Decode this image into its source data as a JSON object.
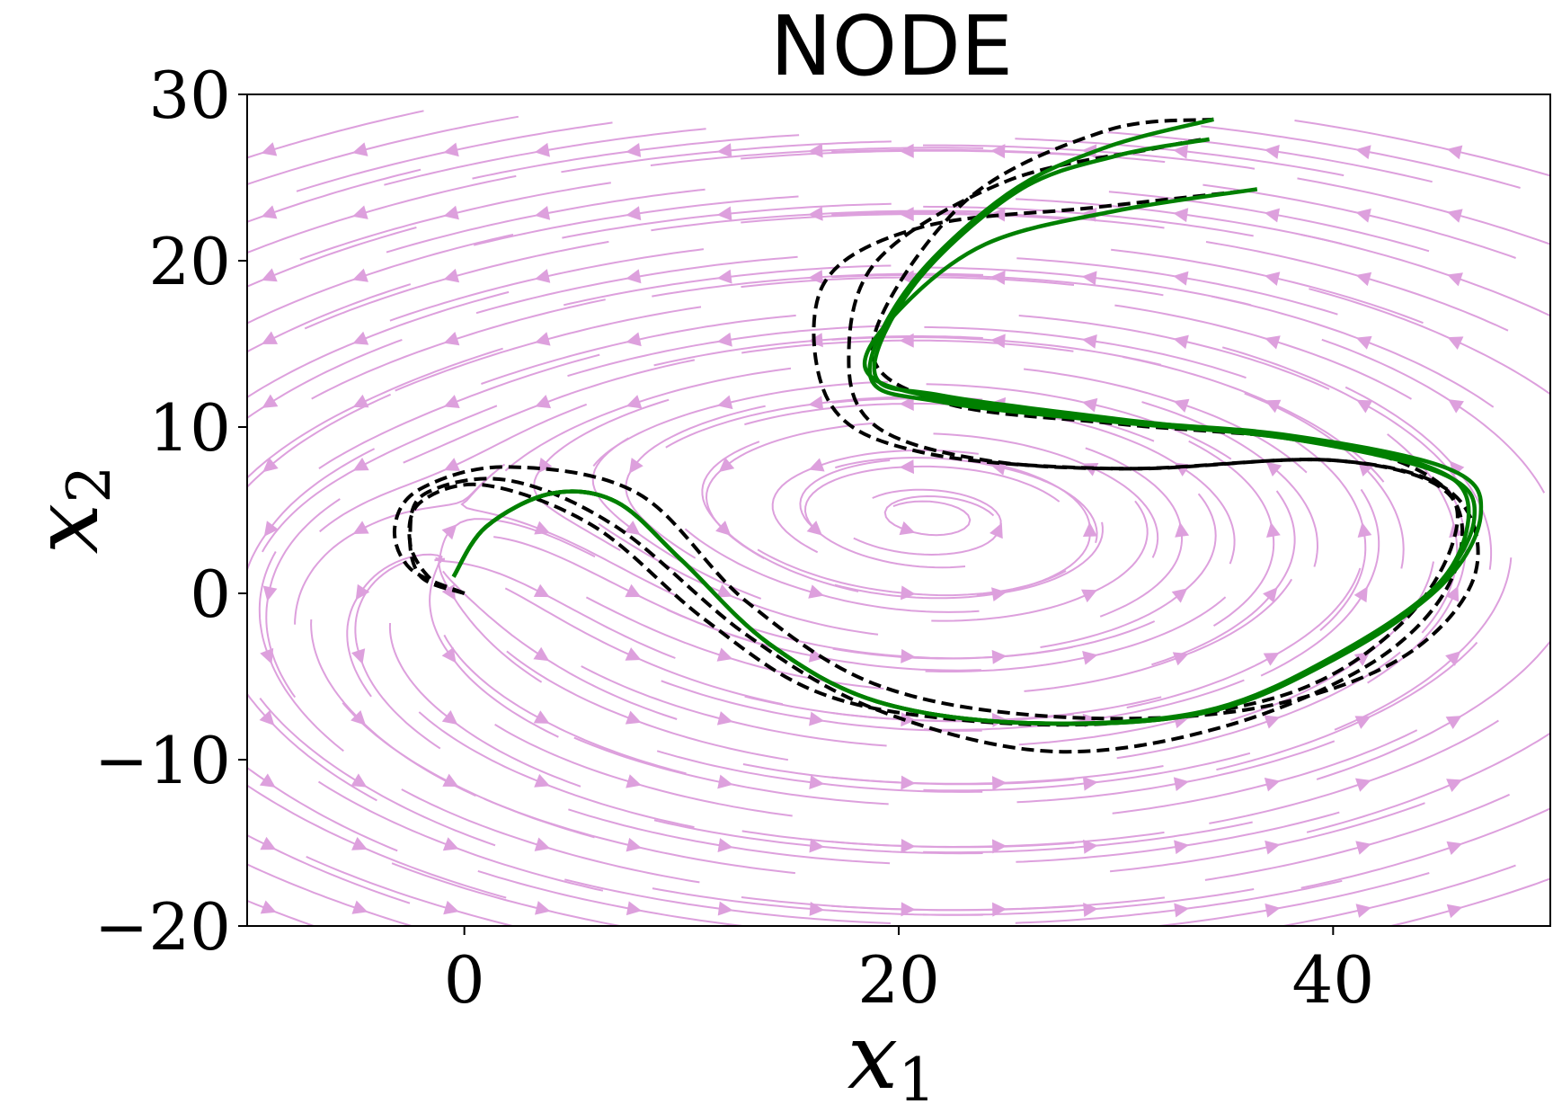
{
  "chart_data": {
    "type": "line",
    "title": "NODE",
    "xlabel": "x",
    "xlabel_sub": "1",
    "ylabel": "x",
    "ylabel_sub": "2",
    "xlim": [
      -10,
      50
    ],
    "ylim": [
      -20,
      30
    ],
    "xticks": [
      0,
      20,
      40
    ],
    "xtick_labels": [
      "0",
      "20",
      "40"
    ],
    "yticks": [
      -20,
      -10,
      0,
      10,
      20,
      30
    ],
    "ytick_labels": [
      "−20",
      "−10",
      "0",
      "10",
      "20",
      "30"
    ],
    "grid": false,
    "legend": "none",
    "streamplot": {
      "description_color": "#dda0dd",
      "equilibria": [
        {
          "kind": "center",
          "x": 22,
          "y": 2.5
        },
        {
          "kind": "source",
          "x": -1,
          "y": 1
        }
      ]
    },
    "series": [
      {
        "style": "dashed",
        "color": "#000000",
        "points": [
          [
            0,
            0
          ],
          [
            -1.5,
            0.8
          ],
          [
            -2.5,
            3
          ],
          [
            -2,
            5.5
          ],
          [
            1,
            6.5
          ],
          [
            6,
            4
          ],
          [
            11,
            -1.5
          ],
          [
            16,
            -5.8
          ],
          [
            22,
            -7.5
          ],
          [
            30,
            -7.8
          ],
          [
            38,
            -6
          ],
          [
            43,
            -2
          ],
          [
            45.5,
            3
          ],
          [
            45,
            6.5
          ],
          [
            40,
            9
          ],
          [
            30,
            10.2
          ],
          [
            22,
            11.5
          ],
          [
            18.8,
            15
          ],
          [
            23,
            23.5
          ],
          [
            29.5,
            27.8
          ],
          [
            34.5,
            28.5
          ]
        ]
      },
      {
        "style": "dashed",
        "color": "#000000",
        "points": [
          [
            0,
            0
          ],
          [
            -2,
            1
          ],
          [
            -2.5,
            3.5
          ],
          [
            -1.8,
            6
          ],
          [
            2,
            6.8
          ],
          [
            7,
            4
          ],
          [
            13,
            -2.5
          ],
          [
            19,
            -7
          ],
          [
            27,
            -9.5
          ],
          [
            35,
            -8
          ],
          [
            42,
            -4
          ],
          [
            45.5,
            1
          ],
          [
            45.3,
            6
          ],
          [
            40,
            8
          ],
          [
            31,
            7.5
          ],
          [
            24,
            8
          ],
          [
            19,
            10
          ],
          [
            17.7,
            14
          ],
          [
            19,
            20
          ],
          [
            25,
            24.8
          ],
          [
            32,
            26.8
          ],
          [
            34,
            27.3
          ]
        ]
      },
      {
        "style": "dashed",
        "color": "#000000",
        "points": [
          [
            0,
            0
          ],
          [
            -2.5,
            1.5
          ],
          [
            -3.2,
            4
          ],
          [
            -2,
            6.3
          ],
          [
            2,
            7.6
          ],
          [
            8,
            6
          ],
          [
            13,
            -0.5
          ],
          [
            19,
            -5.5
          ],
          [
            27,
            -7.4
          ],
          [
            36,
            -7
          ],
          [
            43,
            -4
          ],
          [
            46.5,
            1
          ],
          [
            45.5,
            6
          ],
          [
            40,
            8
          ],
          [
            30,
            7.5
          ],
          [
            21,
            8.5
          ],
          [
            16.8,
            11.5
          ],
          [
            16.5,
            18.5
          ],
          [
            21,
            22
          ],
          [
            29,
            23.2
          ],
          [
            36,
            24.2
          ]
        ]
      },
      {
        "style": "solid",
        "color": "#008000",
        "points": [
          [
            -0.5,
            1
          ],
          [
            1,
            4
          ],
          [
            4,
            6
          ],
          [
            7,
            5.5
          ],
          [
            10,
            2
          ],
          [
            14,
            -3
          ],
          [
            19,
            -6.5
          ],
          [
            26,
            -7.8
          ],
          [
            34,
            -7.2
          ],
          [
            40,
            -4
          ],
          [
            44.5,
            0
          ],
          [
            46.5,
            4.5
          ],
          [
            45,
            7.2
          ],
          [
            38,
            9.3
          ],
          [
            30,
            10.3
          ],
          [
            22,
            11.5
          ],
          [
            18.7,
            13
          ],
          [
            20.5,
            18.5
          ],
          [
            25,
            24
          ],
          [
            29.5,
            26.8
          ],
          [
            34.5,
            28.5
          ]
        ]
      },
      {
        "style": "solid",
        "color": "#008000",
        "points": [
          [
            -0.5,
            1
          ],
          [
            1,
            4
          ],
          [
            4,
            6
          ],
          [
            7,
            5.5
          ],
          [
            10,
            2
          ],
          [
            14,
            -3
          ],
          [
            19,
            -6.5
          ],
          [
            26,
            -7.8
          ],
          [
            34,
            -7.2
          ],
          [
            40,
            -4
          ],
          [
            45,
            0.5
          ],
          [
            46.8,
            4.8
          ],
          [
            45.3,
            7.5
          ],
          [
            38,
            9.5
          ],
          [
            30,
            10.4
          ],
          [
            22,
            11.7
          ],
          [
            18.5,
            13.4
          ],
          [
            20,
            17
          ],
          [
            24,
            21
          ],
          [
            30,
            23
          ],
          [
            36.5,
            24.3
          ]
        ]
      },
      {
        "style": "solid",
        "color": "#008000",
        "points": [
          [
            -0.5,
            1
          ],
          [
            1,
            4
          ],
          [
            4,
            6
          ],
          [
            7,
            5.5
          ],
          [
            10,
            2
          ],
          [
            14,
            -3
          ],
          [
            19,
            -6.5
          ],
          [
            26,
            -7.8
          ],
          [
            34,
            -7.1
          ],
          [
            40,
            -3.8
          ],
          [
            45,
            0.8
          ],
          [
            46.2,
            5.5
          ],
          [
            44,
            7.8
          ],
          [
            38,
            9.3
          ],
          [
            30,
            10.5
          ],
          [
            22,
            11.9
          ],
          [
            18.9,
            13.2
          ],
          [
            20.8,
            18.7
          ],
          [
            25.5,
            24.2
          ],
          [
            30,
            26.3
          ],
          [
            34.3,
            27.3
          ]
        ]
      }
    ]
  }
}
